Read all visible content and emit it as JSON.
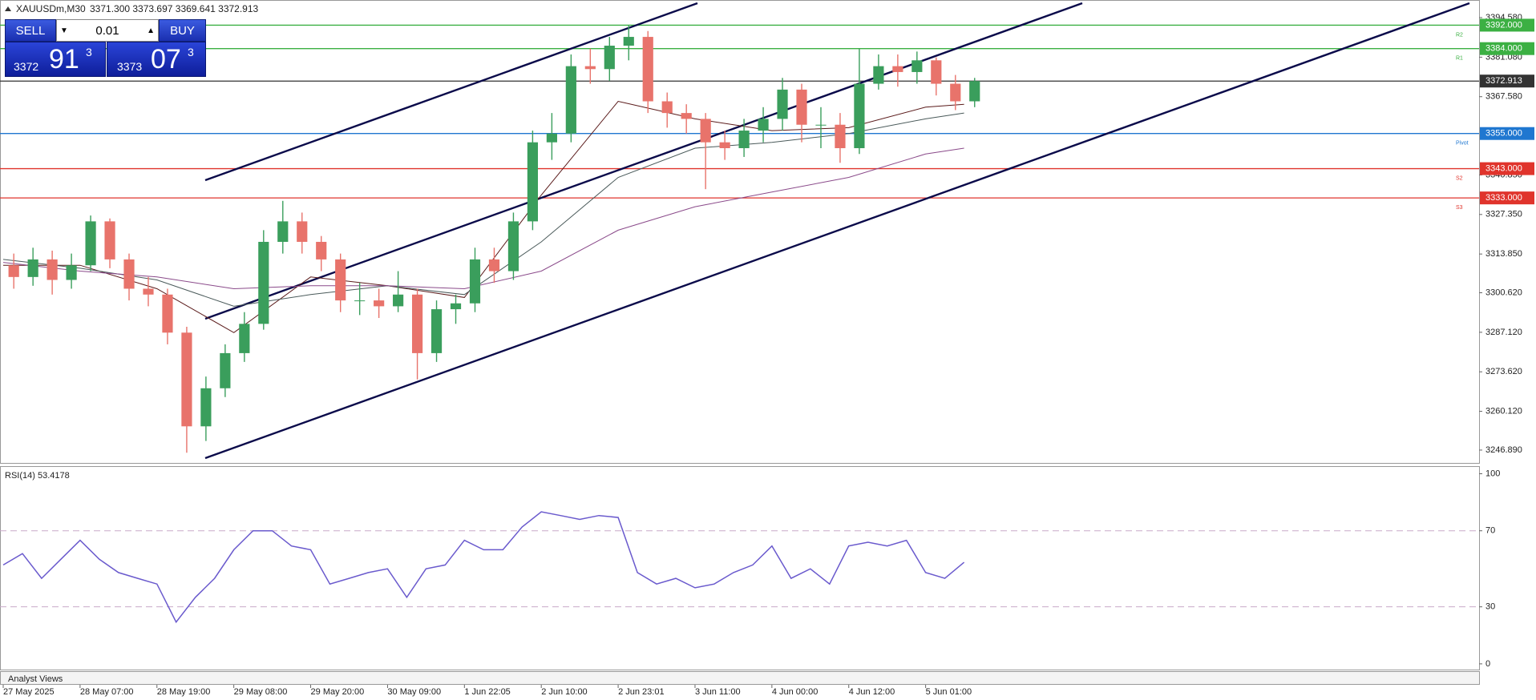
{
  "header": {
    "symbol": "XAUUSDm,M30",
    "quote": "3371.300 3373.697 3369.641 3372.913"
  },
  "trade_panel": {
    "sell": "SELL",
    "buy": "BUY",
    "volume": "0.01",
    "bid_main": "3372",
    "bid_big": "91",
    "bid_small": "3",
    "ask_main": "3373",
    "ask_big": "07",
    "ask_small": "3"
  },
  "footer": "Analyst Views",
  "chart_data": [
    {
      "type": "candlestick",
      "x": [
        0,
        0.25,
        0.5,
        0.75,
        1,
        1.25,
        1.5,
        1.75,
        2,
        2.25,
        2.5,
        2.75,
        3,
        3.25,
        3.5,
        3.75,
        4,
        4.25,
        4.5,
        4.75,
        5,
        5.25,
        5.5,
        5.75,
        6,
        6.25,
        6.5,
        6.75,
        7,
        7.25,
        7.5,
        7.75,
        8,
        8.25,
        8.5,
        8.75,
        9,
        9.25,
        9.5,
        9.75,
        10,
        10.25,
        10.5,
        10.75,
        11,
        11.25,
        11.5,
        11.75,
        12,
        12.25,
        12.5
      ],
      "open": [
        3310,
        3306,
        3312,
        3305,
        3310,
        3325,
        3312,
        3302,
        3300,
        3287,
        3255,
        3268,
        3280,
        3290,
        3318,
        3325,
        3318,
        3312,
        3298,
        3298,
        3296,
        3300,
        3280,
        3295,
        3297,
        3312,
        3308,
        3325,
        3352,
        3355,
        3378,
        3377,
        3385,
        3388,
        3366,
        3362,
        3360,
        3352,
        3350,
        3356,
        3360,
        3370,
        3358,
        3358,
        3350,
        3372,
        3378,
        3376,
        3380,
        3372,
        3366
      ],
      "high": [
        3314,
        3316,
        3315,
        3314,
        3327,
        3326,
        3314,
        3306,
        3302,
        3289,
        3272,
        3283,
        3294,
        3322,
        3332,
        3328,
        3320,
        3314,
        3304,
        3302,
        3308,
        3302,
        3298,
        3300,
        3316,
        3316,
        3328,
        3356,
        3362,
        3382,
        3384,
        3388,
        3392,
        3390,
        3369,
        3365,
        3362,
        3356,
        3360,
        3364,
        3374,
        3372,
        3364,
        3362,
        3384,
        3382,
        3382,
        3383,
        3381,
        3375,
        3374
      ],
      "low": [
        3302,
        3303,
        3300,
        3302,
        3308,
        3309,
        3298,
        3296,
        3283,
        3246,
        3250,
        3265,
        3277,
        3288,
        3314,
        3314,
        3308,
        3294,
        3293,
        3292,
        3294,
        3271,
        3277,
        3290,
        3294,
        3304,
        3305,
        3322,
        3346,
        3352,
        3372,
        3373,
        3380,
        3362,
        3357,
        3355,
        3336,
        3346,
        3347,
        3352,
        3356,
        3352,
        3350,
        3345,
        3348,
        3370,
        3371,
        3372,
        3368,
        3363,
        3364
      ],
      "close": [
        3306,
        3312,
        3305,
        3310,
        3325,
        3312,
        3302,
        3300,
        3287,
        3255,
        3268,
        3280,
        3290,
        3318,
        3325,
        3318,
        3312,
        3298,
        3298,
        3296,
        3300,
        3280,
        3295,
        3297,
        3312,
        3308,
        3325,
        3352,
        3355,
        3378,
        3377,
        3385,
        3388,
        3366,
        3362,
        3360,
        3352,
        3350,
        3356,
        3360,
        3370,
        3358,
        3358,
        3350,
        3372,
        3378,
        3376,
        3380,
        3372,
        3366,
        3372.913
      ],
      "up_color": "#3a9e5c",
      "down_color": "#e8736b",
      "xlim": [
        0,
        19.2
      ],
      "ylim": [
        3242.5,
        3400.6
      ],
      "yticks": [
        {
          "value": 3394.58,
          "label": "3394.580"
        },
        {
          "value": 3381.08,
          "label": "3381.080"
        },
        {
          "value": 3367.58,
          "label": "3367.580"
        },
        {
          "value": 3340.85,
          "label": "3340.850"
        },
        {
          "value": 3327.35,
          "label": "3327.350"
        },
        {
          "value": 3313.85,
          "label": "3313.850"
        },
        {
          "value": 3300.62,
          "label": "3300.620"
        },
        {
          "value": 3287.12,
          "label": "3287.120"
        },
        {
          "value": 3273.62,
          "label": "3273.620"
        },
        {
          "value": 3260.12,
          "label": "3260.120"
        },
        {
          "value": 3246.89,
          "label": "3246.890"
        }
      ],
      "xticks": [
        {
          "value": 0,
          "label": "27 May 2025"
        },
        {
          "value": 1,
          "label": "28 May 07:00"
        },
        {
          "value": 2,
          "label": "28 May 19:00"
        },
        {
          "value": 3,
          "label": "29 May 08:00"
        },
        {
          "value": 4,
          "label": "29 May 20:00"
        },
        {
          "value": 5,
          "label": "30 May 09:00"
        },
        {
          "value": 6,
          "label": "1 Jun 22:05"
        },
        {
          "value": 7,
          "label": "2 Jun 10:00"
        },
        {
          "value": 8,
          "label": "2 Jun 23:01"
        },
        {
          "value": 9,
          "label": "3 Jun 11:00"
        },
        {
          "value": 10,
          "label": "4 Jun 00:00"
        },
        {
          "value": 11,
          "label": "4 Jun 12:00"
        },
        {
          "value": 12,
          "label": "5 Jun 01:00"
        }
      ],
      "moving_averages": [
        {
          "color": "#5a1a1a",
          "x": [
            0,
            1,
            2,
            3,
            4,
            5,
            6,
            7,
            8,
            9,
            10,
            11,
            12,
            12.5
          ],
          "values": [
            3310,
            3310,
            3302,
            3287,
            3306,
            3303,
            3299,
            3334,
            3366,
            3360,
            3356,
            3357,
            3364,
            3365
          ]
        },
        {
          "color": "#4a5a5a",
          "x": [
            0,
            1,
            2,
            3,
            4,
            5,
            6,
            7,
            8,
            9,
            10,
            11,
            12,
            12.5
          ],
          "values": [
            3312,
            3309,
            3305,
            3296,
            3300,
            3303,
            3300,
            3318,
            3340,
            3350,
            3352,
            3355,
            3360,
            3362
          ]
        },
        {
          "color": "#8a4a8a",
          "x": [
            0,
            1,
            2,
            3,
            4,
            5,
            6,
            7,
            8,
            9,
            10,
            11,
            12,
            12.5
          ],
          "values": [
            3311,
            3308,
            3306,
            3302,
            3303,
            3303,
            3302,
            3308,
            3322,
            3330,
            3335,
            3340,
            3348,
            3350
          ]
        }
      ],
      "levels": [
        {
          "name": "R2",
          "value": 3392,
          "value_label": "3392.000",
          "color": "#3cb043"
        },
        {
          "name": "R1",
          "value": 3384,
          "value_label": "3384.000",
          "color": "#3cb043"
        },
        {
          "value": 3372.913,
          "value_label": "3372.913",
          "color": "#333333"
        },
        {
          "name": "Pivot",
          "value": 3355,
          "value_label": "3355.000",
          "color": "#1f77d0"
        },
        {
          "name": "S2",
          "value": 3343,
          "value_label": "3343.000",
          "color": "#e0342c"
        },
        {
          "name": "S3",
          "value": 3333,
          "value_label": "3333.000",
          "color": "#e0342c"
        }
      ]
    },
    {
      "type": "line",
      "title": "RSI(14) 53.4178",
      "x": [
        0,
        0.25,
        0.5,
        0.75,
        1,
        1.25,
        1.5,
        1.75,
        2,
        2.25,
        2.5,
        2.75,
        3,
        3.25,
        3.5,
        3.75,
        4,
        4.25,
        4.5,
        4.75,
        5,
        5.25,
        5.5,
        5.75,
        6,
        6.25,
        6.5,
        6.75,
        7,
        7.25,
        7.5,
        7.75,
        8,
        8.25,
        8.5,
        8.75,
        9,
        9.25,
        9.5,
        9.75,
        10,
        10.25,
        10.5,
        10.75,
        11,
        11.25,
        11.5,
        11.75,
        12,
        12.25,
        12.5
      ],
      "values": [
        52,
        58,
        45,
        55,
        65,
        55,
        48,
        45,
        42,
        22,
        35,
        45,
        60,
        70,
        70,
        62,
        60,
        42,
        45,
        48,
        50,
        35,
        50,
        52,
        65,
        60,
        60,
        72,
        80,
        78,
        76,
        78,
        77,
        48,
        42,
        45,
        40,
        42,
        48,
        52,
        62,
        45,
        50,
        42,
        62,
        64,
        62,
        65,
        48,
        45,
        53.4178
      ],
      "color": "#6a5acd",
      "xlim": [
        0,
        19.2
      ],
      "ylim": [
        -3,
        104
      ],
      "yticks": [
        0,
        30,
        70,
        100
      ]
    }
  ]
}
